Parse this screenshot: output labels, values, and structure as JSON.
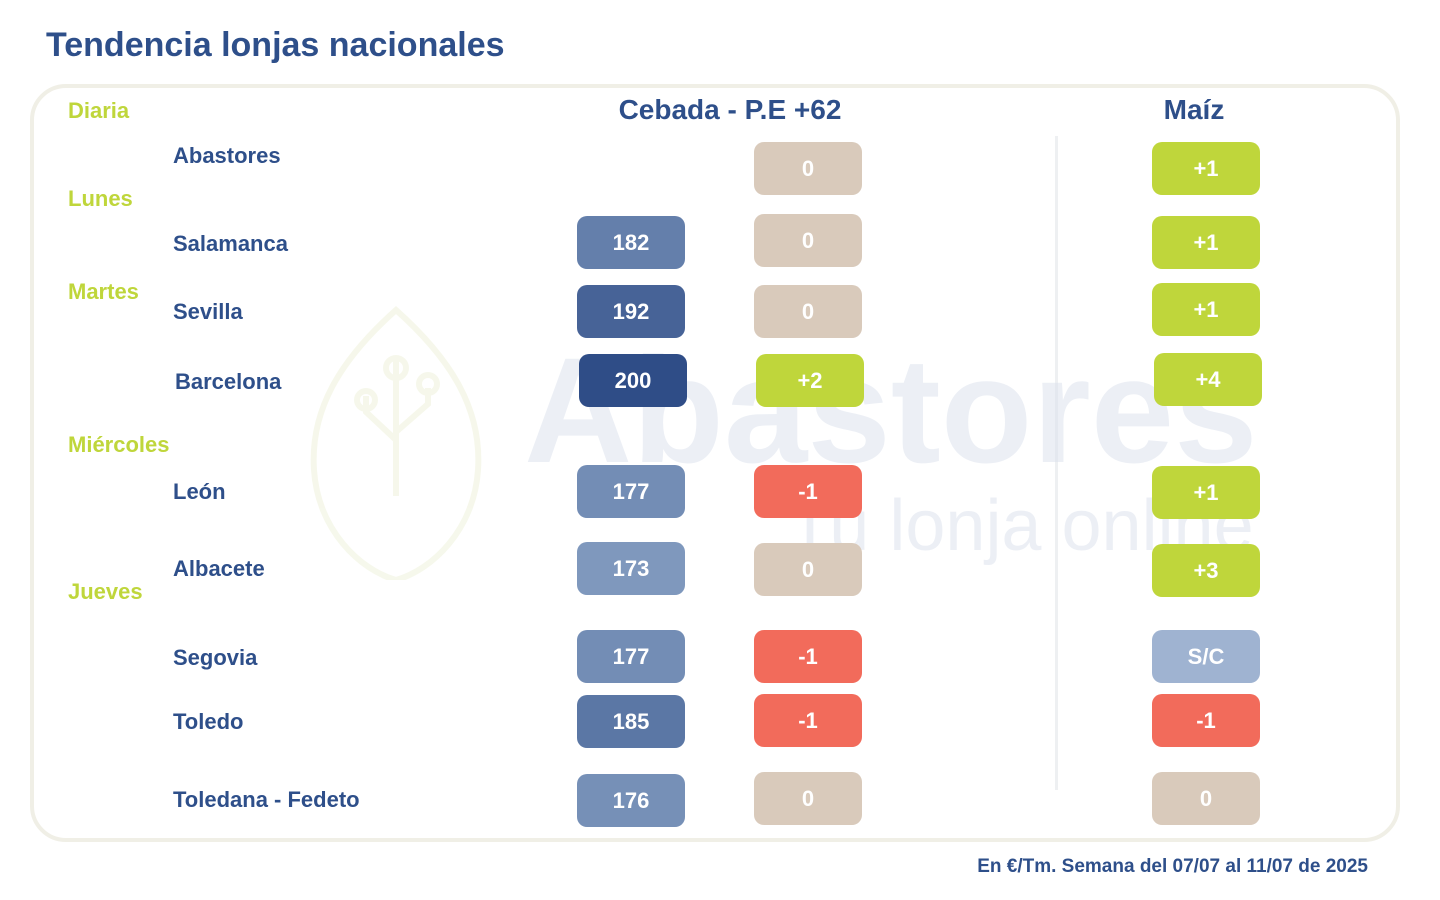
{
  "title": "Tendencia lonjas nacionales",
  "footnote": "En €/Tm. Semana del 07/07 al 11/07 de 2025",
  "watermark": {
    "brand": "Abastores",
    "tagline": "Tu lonja online"
  },
  "colors": {
    "title": "#2e4f8a",
    "day_label": "#bfd63b",
    "rise": "#bfd63b",
    "unchanged": "#d9cabb",
    "fall": "#f26b5b",
    "no_quote": "#9fb3d1"
  },
  "chart_data": {
    "type": "table",
    "title": "Tendencia lonjas nacionales",
    "columns": [
      "Cebada - P.E +62",
      "Maíz"
    ],
    "day_groups": [
      {
        "label": "Diaria",
        "markets": [
          "Abastores"
        ]
      },
      {
        "label": "Lunes",
        "markets": [
          "Salamanca"
        ]
      },
      {
        "label": "Martes",
        "markets": [
          "Sevilla",
          "Barcelona"
        ]
      },
      {
        "label": "Miércoles",
        "markets": [
          "León",
          "Albacete"
        ]
      },
      {
        "label": "Jueves",
        "markets": [
          "Segovia",
          "Toledo",
          "Toledana - Fedeto"
        ]
      }
    ],
    "rows": [
      {
        "market": "Abastores",
        "cebada_price": null,
        "cebada_change": "0",
        "maiz_change": "+1"
      },
      {
        "market": "Salamanca",
        "cebada_price": "182",
        "cebada_change": "0",
        "maiz_change": "+1"
      },
      {
        "market": "Sevilla",
        "cebada_price": "192",
        "cebada_change": "0",
        "maiz_change": "+1"
      },
      {
        "market": "Barcelona",
        "cebada_price": "200",
        "cebada_change": "+2",
        "maiz_change": "+4"
      },
      {
        "market": "León",
        "cebada_price": "177",
        "cebada_change": "-1",
        "maiz_change": "+1"
      },
      {
        "market": "Albacete",
        "cebada_price": "173",
        "cebada_change": "0",
        "maiz_change": "+3"
      },
      {
        "market": "Segovia",
        "cebada_price": "177",
        "cebada_change": "-1",
        "maiz_change": "S/C"
      },
      {
        "market": "Toledo",
        "cebada_price": "185",
        "cebada_change": "-1",
        "maiz_change": "-1"
      },
      {
        "market": "Toledana - Fedeto",
        "cebada_price": "176",
        "cebada_change": "0",
        "maiz_change": "0"
      }
    ],
    "price_color_scale": {
      "min": 173,
      "max": 200,
      "light": "#7f98bd",
      "dark": "#2f4d87"
    }
  }
}
